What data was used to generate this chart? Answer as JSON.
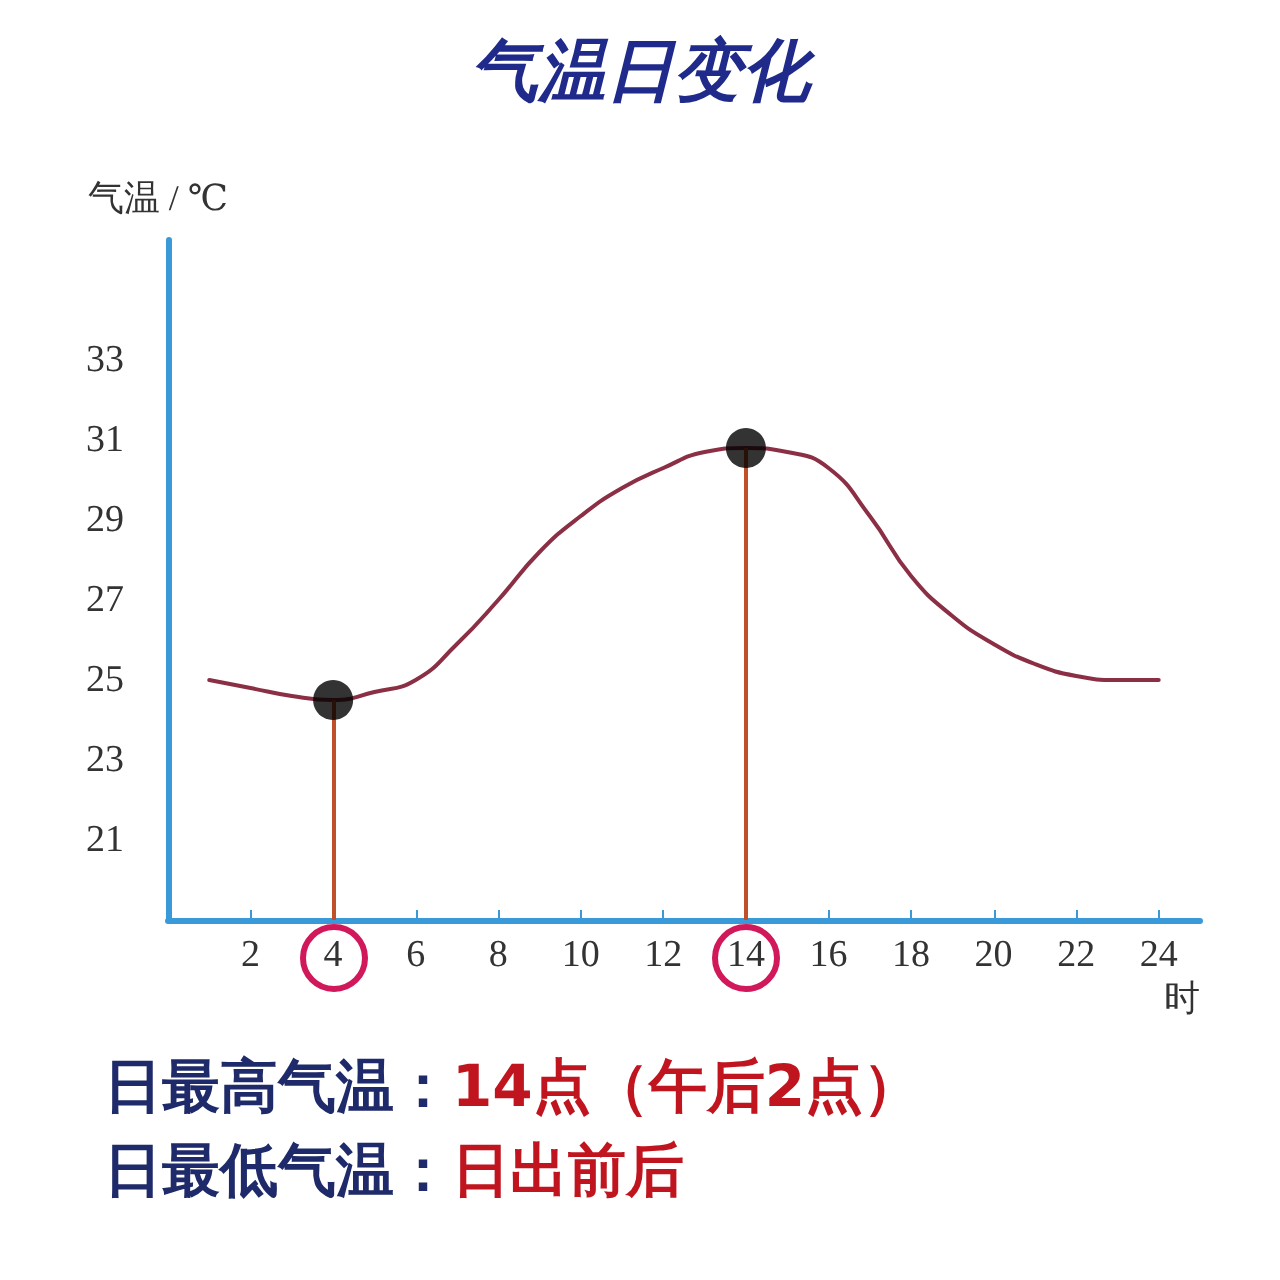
{
  "chart_data": {
    "type": "line",
    "title": "气温日变化",
    "xlabel": "时",
    "ylabel": "气温 / ℃",
    "xlim": [
      0,
      25
    ],
    "xticks": [
      2,
      4,
      6,
      8,
      10,
      12,
      14,
      16,
      18,
      20,
      22,
      24
    ],
    "ylim": [
      19,
      36
    ],
    "yticks": [
      21,
      23,
      25,
      27,
      29,
      31,
      33
    ],
    "grid": false,
    "marker": "none",
    "line_style": "solid",
    "series": [
      {
        "color": "#8b2f45",
        "x": [
          1,
          2,
          3,
          4,
          5,
          6,
          7,
          8,
          9,
          10,
          11,
          12,
          13,
          14,
          15,
          16,
          17,
          18,
          19,
          20,
          21,
          22,
          23,
          24
        ],
        "values": [
          25,
          24.8,
          24.6,
          24.5,
          24.7,
          25,
          25.9,
          27,
          28.2,
          29.1,
          29.8,
          30.3,
          30.7,
          30.8,
          30.7,
          30.3,
          29.1,
          27.6,
          26.6,
          25.9,
          25.4,
          25.1,
          25,
          25
        ]
      },
      {
        "type": "scatter",
        "marker": "circle",
        "color": "#000000",
        "x": [
          4,
          14
        ],
        "values": [
          24.5,
          30.8
        ]
      }
    ],
    "ref_lines": [
      {
        "axis": "x",
        "value": 4,
        "color": "#c0502a"
      },
      {
        "axis": "x",
        "value": 14,
        "color": "#c0502a"
      }
    ],
    "annotations": [
      "日最高气温：",
      "14点（午后2点）",
      "日最低气温：",
      "日出前后"
    ]
  }
}
